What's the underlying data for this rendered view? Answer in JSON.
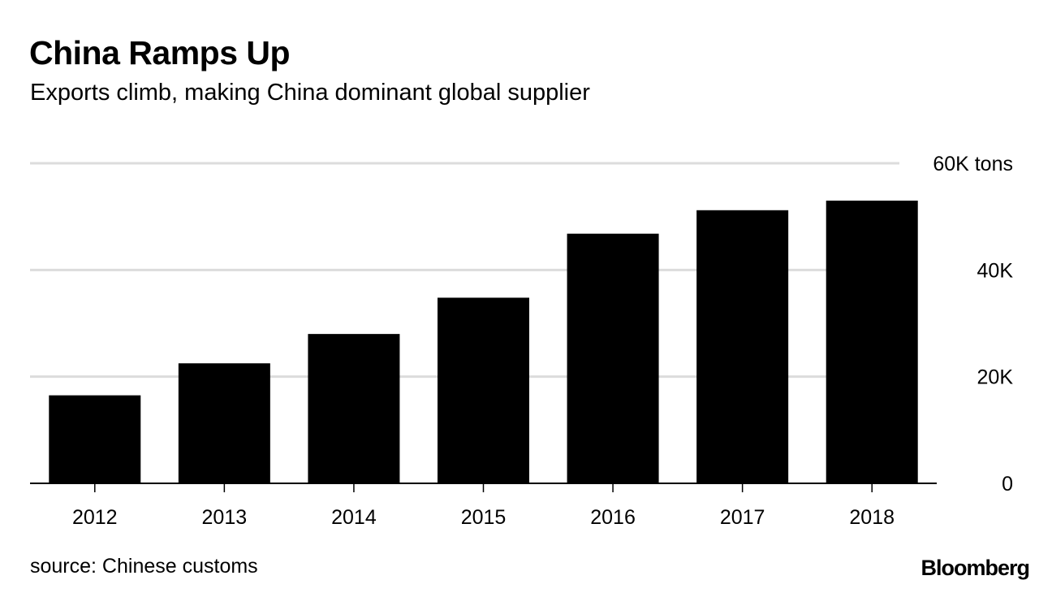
{
  "header": {
    "title": "China Ramps Up",
    "subtitle": "Exports climb, making China dominant global supplier"
  },
  "footer": {
    "source": "source: Chinese customs",
    "brand": "Bloomberg"
  },
  "colors": {
    "bar": "#000000",
    "grid": "#dcdcdc",
    "axis": "#000000"
  },
  "chart_data": {
    "type": "bar",
    "title": "China Ramps Up",
    "subtitle": "Exports climb, making China dominant global supplier",
    "xlabel": "",
    "ylabel": "tons",
    "categories": [
      "2012",
      "2013",
      "2014",
      "2015",
      "2016",
      "2017",
      "2018"
    ],
    "values": [
      16500,
      22500,
      28000,
      34800,
      46800,
      51200,
      53000
    ],
    "ylim": [
      0,
      60000
    ],
    "yticks": [
      0,
      20000,
      40000,
      60000
    ],
    "ytick_labels": [
      "0",
      "20K",
      "40K",
      "60K tons"
    ],
    "grid": true,
    "legend": "none",
    "y_axis_side": "right"
  }
}
